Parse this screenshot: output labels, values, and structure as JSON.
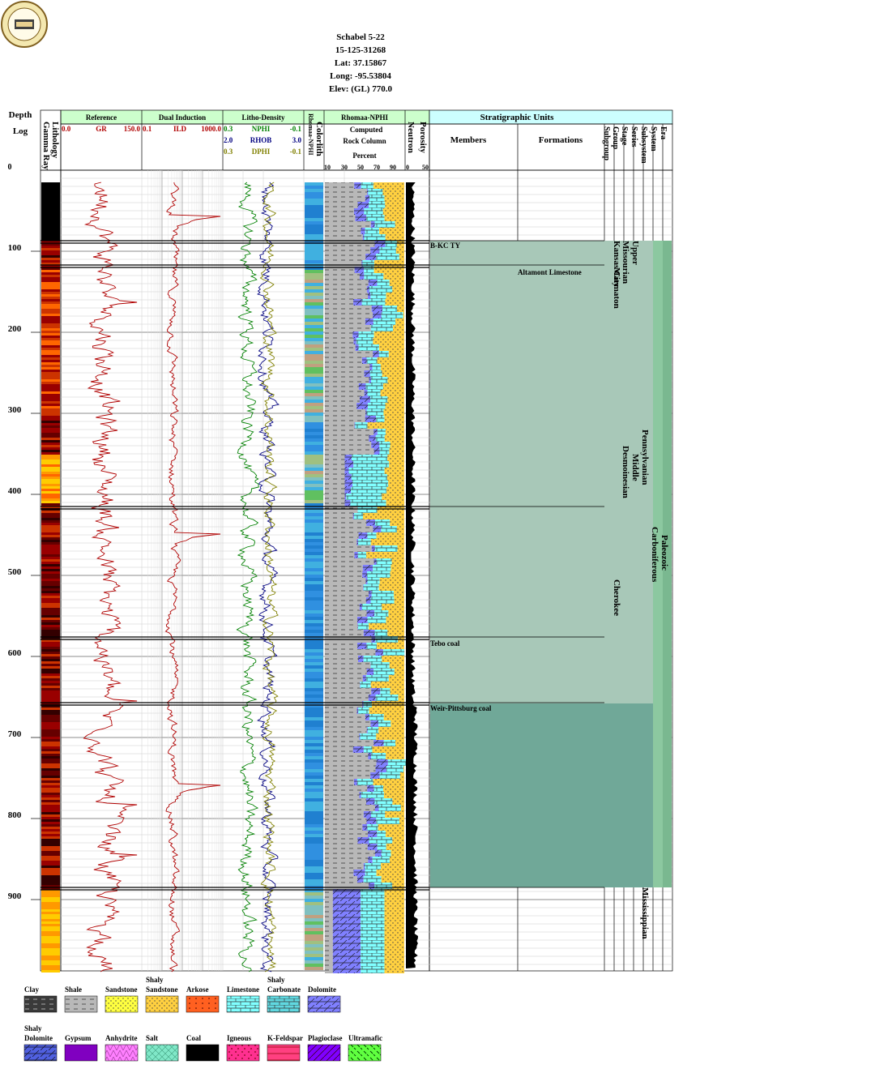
{
  "header": {
    "lines": [
      "Schabel 5-22",
      "15-125-31268",
      "Lat: 37.15867",
      "Long: -95.53804",
      "Elev: (GL) 770.0"
    ]
  },
  "tracks": {
    "depth_title": "Depth",
    "depth_sub": "Log",
    "depth_zero": "0",
    "lithology": "Lithology",
    "gamma_ray": "Gamma Ray",
    "reference": {
      "title": "Reference",
      "curve": "GR",
      "min": "0.0",
      "max": "150.0"
    },
    "induction": {
      "title": "Dual Induction",
      "curve": "ILD",
      "min": "0.1",
      "max": "1000.0"
    },
    "litho_density": {
      "title": "Litho-Density",
      "curves": [
        {
          "min": "0.3",
          "name": "NPHI",
          "max": "-0.1"
        },
        {
          "min": "2.0",
          "name": "RHOB",
          "max": "3.0"
        },
        {
          "min": "0.3",
          "name": "DPHI",
          "max": "-0.1"
        }
      ]
    },
    "colorlith": "Colorlith",
    "colorlith_sub": "Rhomaa-NPHI",
    "rhomaa": {
      "title": "Rhomaa-NPHI",
      "l1": "Computed",
      "l2": "Rock Column",
      "l3": "Percent",
      "ticks": [
        "10",
        "30",
        "50",
        "70",
        "90"
      ]
    },
    "porosity": "Porosity",
    "neutron": "Neutron",
    "por_ticks": [
      "0",
      "50"
    ],
    "strat": {
      "title": "Stratigraphic Units",
      "members": "Members",
      "formations": "Formations",
      "columns": [
        "Subgroup",
        "Group",
        "Stage",
        "Series",
        "Subsystem",
        "System",
        "Era"
      ]
    }
  },
  "colors": {
    "gr_curve": "#b00000",
    "nphi": "#008000",
    "rhob": "#000080",
    "dphi": "#808000",
    "strat_fill": "#a8c8b8",
    "strat_dark": "#70a898",
    "strat_green": "#8cc8a0",
    "header_green": "#ccffcc",
    "header_cyan": "#ccffff"
  },
  "chart_data": {
    "type": "well-log",
    "depth_range": [
      0,
      990
    ],
    "depth_ticks": [
      "100",
      "200",
      "300",
      "400",
      "500",
      "600",
      "700",
      "800",
      "900"
    ],
    "members": [
      {
        "name": "B-KC TY",
        "top": 87
      },
      {
        "name": "Tebo coal",
        "top": 578
      },
      {
        "name": "Weir-Pittsburg coal",
        "top": 658
      }
    ],
    "formations": [
      {
        "name": "Altamont Limestone",
        "top": 120
      }
    ],
    "units": [
      {
        "name": "Kansas City",
        "column": "Group",
        "top": 87,
        "bottom": 120
      },
      {
        "name": "Marmaton",
        "column": "Group",
        "top": 120,
        "bottom": 175
      },
      {
        "name": "Cherokee",
        "column": "Group",
        "top": 505,
        "bottom": 560
      },
      {
        "name": "Missourian",
        "column": "Stage",
        "top": 87,
        "bottom": 175
      },
      {
        "name": "Desmoinesian",
        "column": "Stage",
        "top": 340,
        "bottom": 420
      },
      {
        "name": "Upper",
        "column": "Series",
        "top": 87,
        "bottom": 120
      },
      {
        "name": "Middle",
        "column": "Series",
        "top": 350,
        "bottom": 400
      },
      {
        "name": "Pennsylvanian",
        "column": "Subsystem",
        "top": 320,
        "bottom": 400
      },
      {
        "name": "Mississippian",
        "column": "Subsystem",
        "top": 885,
        "bottom": 960
      },
      {
        "name": "Carboniferous",
        "column": "System",
        "top": 440,
        "bottom": 520
      },
      {
        "name": "Paleozoic",
        "column": "Era",
        "top": 450,
        "bottom": 500
      }
    ]
  },
  "legend": [
    {
      "label": "Clay",
      "color": "#3a3a3a"
    },
    {
      "label": "Shale",
      "color": "#b8b8b8"
    },
    {
      "label": "Sandstone",
      "color": "#ffff40"
    },
    {
      "label": "Shaly\nSandstone",
      "color": "#ffd040"
    },
    {
      "label": "Arkose",
      "color": "#ff6020"
    },
    {
      "label": "Limestone",
      "color": "#80ffff"
    },
    {
      "label": "Shaly\nCarbonate",
      "color": "#60d8e0"
    },
    {
      "label": "Dolomite",
      "color": "#8080ff"
    },
    {
      "label": "Shaly\nDolomite",
      "color": "#5060e0"
    },
    {
      "label": "Gypsum",
      "color": "#8000c0"
    },
    {
      "label": "Anhydrite",
      "color": "#ff80ff"
    },
    {
      "label": "Salt",
      "color": "#80e8c8"
    },
    {
      "label": "Coal",
      "color": "#000000"
    },
    {
      "label": "Igneous",
      "color": "#ff3090"
    },
    {
      "label": "K-Feldspar",
      "color": "#ff4080"
    },
    {
      "label": "Plagioclase",
      "color": "#8000ff"
    },
    {
      "label": "Ultramafic",
      "color": "#60ff40"
    }
  ]
}
